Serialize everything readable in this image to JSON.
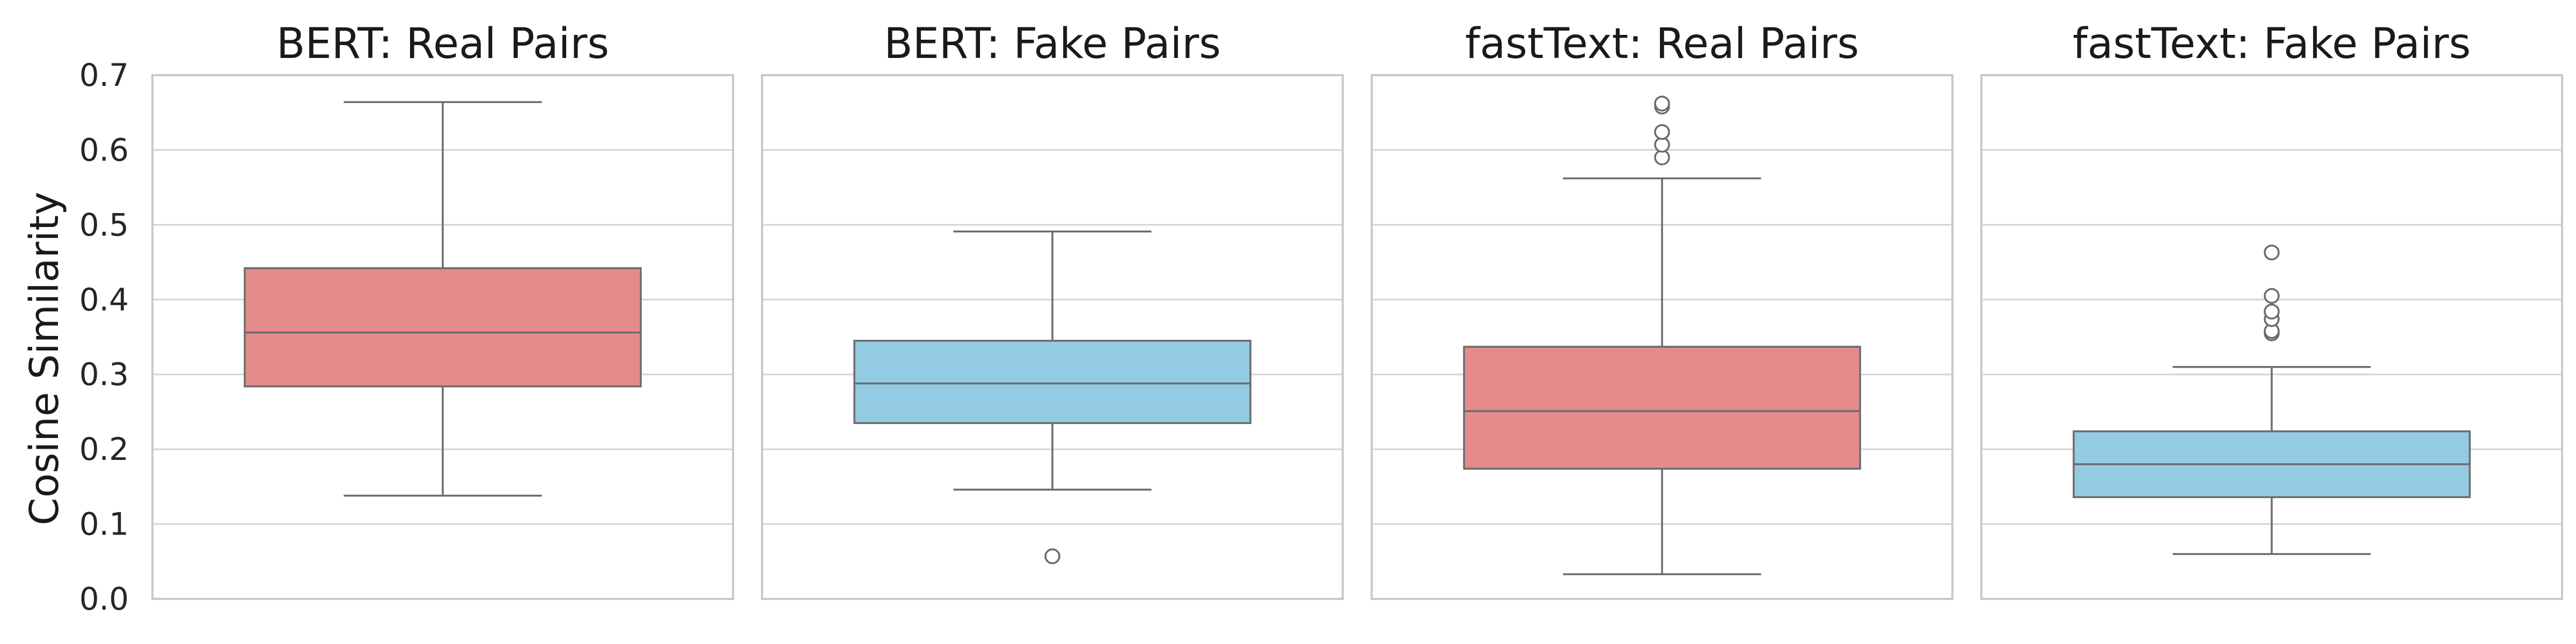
{
  "chart_data": {
    "type": "box",
    "ylabel": "Cosine Similarity",
    "ylim": [
      0.0,
      0.7
    ],
    "yticks": [
      "0.0",
      "0.1",
      "0.2",
      "0.3",
      "0.4",
      "0.5",
      "0.6",
      "0.7"
    ],
    "grid": "horizontal",
    "colors": {
      "real": "#E48B8C",
      "fake": "#93CBE2",
      "line": "#6b6b6b",
      "grid": "#d4d4d4",
      "frame": "#c9c9c9"
    },
    "panels": [
      {
        "title": "BERT: Real Pairs",
        "color": "#E48B8C",
        "whisker_low": 0.138,
        "q1": 0.284,
        "median": 0.356,
        "q3": 0.442,
        "whisker_high": 0.664,
        "outliers": []
      },
      {
        "title": "BERT: Fake Pairs",
        "color": "#93CBE2",
        "whisker_low": 0.146,
        "q1": 0.235,
        "median": 0.288,
        "q3": 0.345,
        "whisker_high": 0.491,
        "outliers": [
          0.057
        ]
      },
      {
        "title": "fastText: Real Pairs",
        "color": "#E48B8C",
        "whisker_low": 0.033,
        "q1": 0.174,
        "median": 0.251,
        "q3": 0.337,
        "whisker_high": 0.562,
        "outliers": [
          0.59,
          0.607,
          0.624,
          0.658,
          0.662
        ]
      },
      {
        "title": "fastText: Fake Pairs",
        "color": "#93CBE2",
        "whisker_low": 0.06,
        "q1": 0.136,
        "median": 0.18,
        "q3": 0.224,
        "whisker_high": 0.31,
        "outliers": [
          0.355,
          0.358,
          0.374,
          0.384,
          0.405,
          0.463
        ]
      }
    ]
  }
}
